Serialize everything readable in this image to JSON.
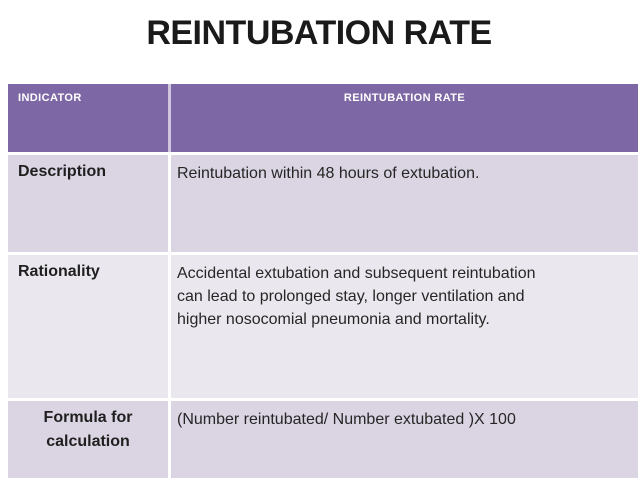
{
  "slide": {
    "title": "REINTUBATION RATE"
  },
  "table": {
    "header": {
      "col1": "INDICATOR",
      "col2": "REINTUBATION RATE"
    },
    "rows": [
      {
        "label": "Description",
        "value": "Reintubation within 48 hours of extubation."
      },
      {
        "label": "Rationality",
        "value": "Accidental extubation and subsequent reintubation\ncan lead to prolonged stay, longer ventilation and\nhigher nosocomial pneumonia and mortality."
      },
      {
        "label": "Formula for\ncalculation",
        "value": "(Number reintubated/ Number extubated )X 100"
      }
    ]
  },
  "colors": {
    "header_bg": "#7d68a5",
    "band_dark": "#dbd5e3",
    "band_light": "#eae8ee",
    "header_divider": "#cfc6dd",
    "header_text": "#ffffff",
    "body_text": "#262626",
    "title_text": "#1a1a1a",
    "background": "#ffffff"
  }
}
